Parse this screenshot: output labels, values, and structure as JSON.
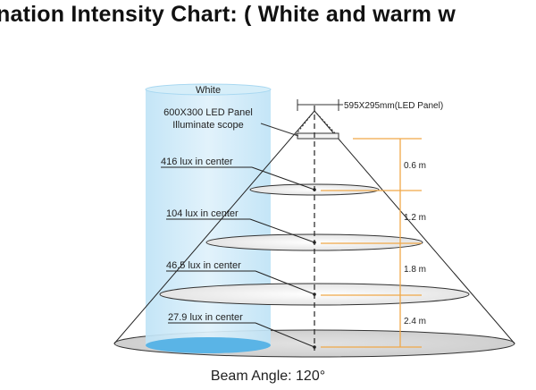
{
  "title": "nation Intensity Chart: ( White and warm w",
  "white_column": {
    "label": "White",
    "panel_label_line1": "600X300 LED Panel",
    "panel_label_line2": "Illuminate scope"
  },
  "panel_dimension_label": "595X295mm(LED Panel)",
  "levels": [
    {
      "lux_label": "416 lux in center",
      "distance_label": "0.6 m"
    },
    {
      "lux_label": "104 lux in center",
      "distance_label": "1.2 m"
    },
    {
      "lux_label": "46.5 lux in center",
      "distance_label": "1.8 m"
    },
    {
      "lux_label": "27.9 lux in center",
      "distance_label": "2.4 m"
    }
  ],
  "beam_angle_label": "Beam Angle: 120°",
  "colors": {
    "column_fill": "#cde9f8",
    "column_edge": "#8fcdf0",
    "floor_pool": "#5ab4e6",
    "guide_orange": "#f0a848",
    "line": "#222222"
  }
}
